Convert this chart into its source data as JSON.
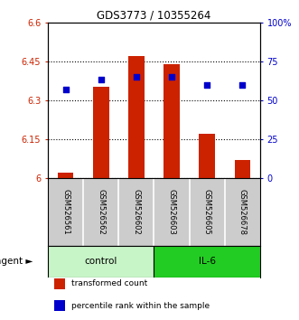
{
  "title": "GDS3773 / 10355264",
  "samples": [
    "GSM526561",
    "GSM526562",
    "GSM526602",
    "GSM526603",
    "GSM526605",
    "GSM526678"
  ],
  "bar_values": [
    6.02,
    6.35,
    6.47,
    6.44,
    6.17,
    6.07
  ],
  "bar_base": 6.0,
  "percentile_values": [
    57,
    63,
    65,
    65,
    60,
    60
  ],
  "ylim_left": [
    6.0,
    6.6
  ],
  "ylim_right": [
    0,
    100
  ],
  "yticks_left": [
    6.0,
    6.15,
    6.3,
    6.45,
    6.6
  ],
  "yticks_right": [
    0,
    25,
    50,
    75,
    100
  ],
  "ytick_labels_left": [
    "6",
    "6.15",
    "6.3",
    "6.45",
    "6.6"
  ],
  "ytick_labels_right": [
    "0",
    "25",
    "50",
    "75",
    "100%"
  ],
  "control_color": "#c8f5c8",
  "il6_color": "#22cc22",
  "bar_color": "#cc2200",
  "dot_color": "#0000cc",
  "legend_items": [
    {
      "label": "transformed count",
      "color": "#cc2200"
    },
    {
      "label": "percentile rank within the sample",
      "color": "#0000cc"
    }
  ],
  "left_axis_color": "#cc2200",
  "right_axis_color": "#0000cc",
  "background_color": "#ffffff",
  "sample_box_color": "#cccccc"
}
